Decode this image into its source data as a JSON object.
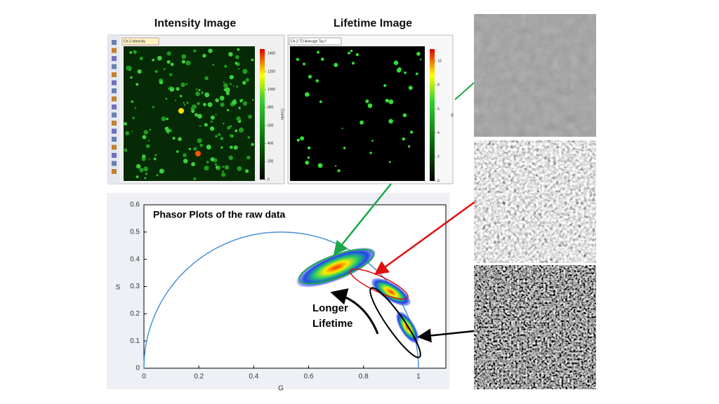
{
  "headings": {
    "intensity": "Intensity Image",
    "lifetime": "Lifetime Image"
  },
  "windows": [
    {
      "tab": "Ch-2 Intensity",
      "colorbar_label": "Counts",
      "colorbar_lim": [
        0,
        1450
      ],
      "colorbar_ticks": [
        0,
        200,
        400,
        600,
        800,
        1000,
        1200,
        1400
      ]
    },
    {
      "tab": "Ch-2 TD Average Tau f",
      "colorbar_label": "ns",
      "colorbar_lim": [
        0,
        11
      ],
      "colorbar_ticks": [
        0,
        2,
        4,
        6,
        8,
        10
      ]
    }
  ],
  "chart_data": {
    "type": "scatter",
    "title": "Phasor Plots of the raw data",
    "x_label": "G",
    "y_label": "S",
    "annotations": [
      "Longer",
      "Lifetime"
    ],
    "xlim": [
      0,
      1.1
    ],
    "ylim": [
      0,
      0.6
    ],
    "xticks": [
      0,
      0.2,
      0.4,
      0.6,
      0.8,
      1
    ],
    "yticks": [
      0,
      0.1,
      0.2,
      0.3,
      0.4,
      0.5,
      0.6
    ],
    "series": [
      {
        "x": [
          0.7,
          0.9,
          0.96
        ],
        "values": [
          0.37,
          0.28,
          0.15
        ]
      }
    ]
  }
}
